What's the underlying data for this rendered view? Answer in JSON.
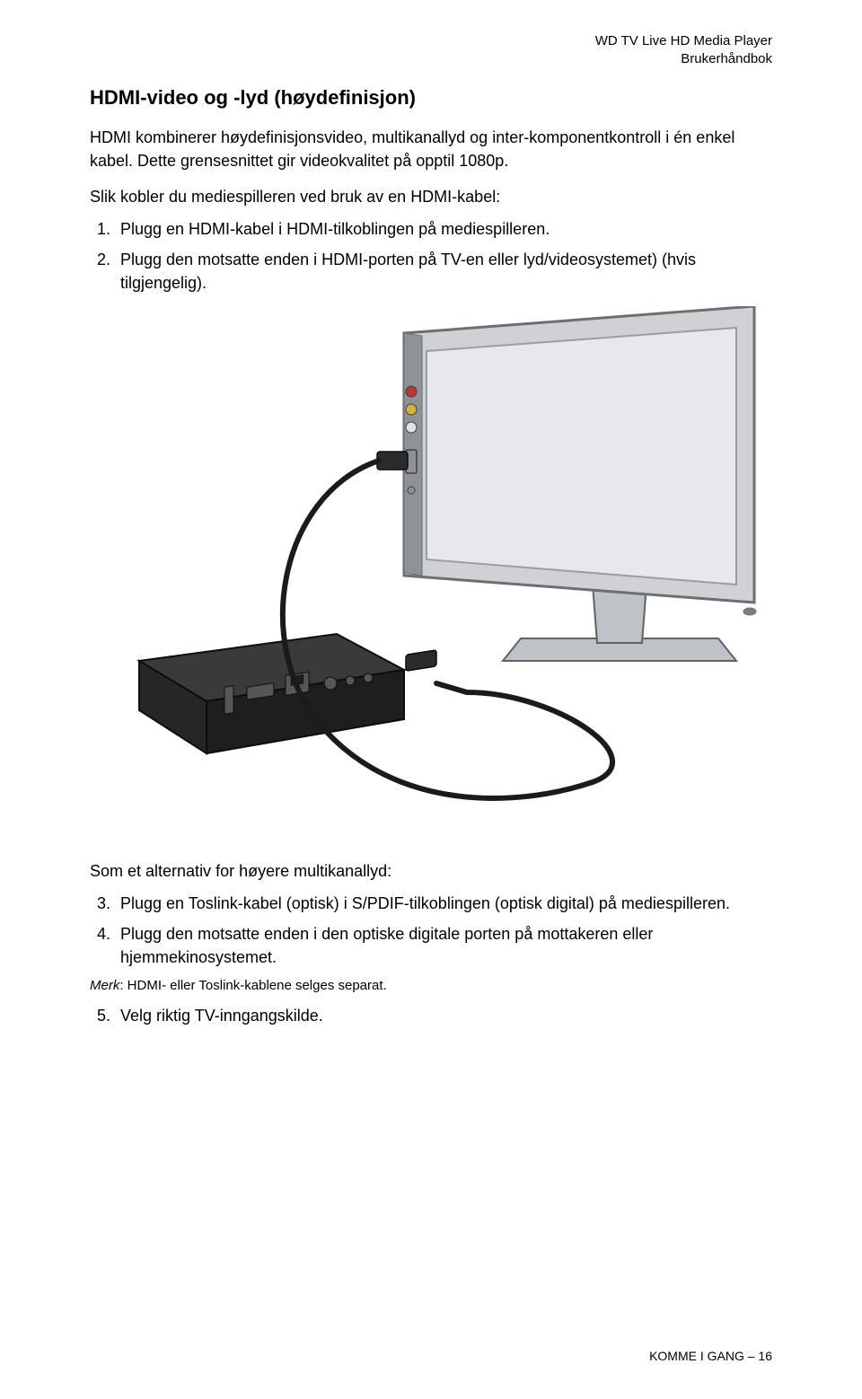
{
  "header": {
    "product": "WD TV Live HD Media Player",
    "doc_type": "Brukerhåndbok"
  },
  "section": {
    "heading": "HDMI-video og -lyd (høydefinisjon)",
    "intro": "HDMI kombinerer høydefinisjonsvideo, multikanallyd og inter-komponentkontroll i én enkel kabel. Dette grensesnittet gir videokvalitet på opptil 1080p.",
    "list1_intro": "Slik kobler du mediespilleren ved bruk av en HDMI-kabel:",
    "steps1": [
      "Plugg en HDMI-kabel i HDMI-tilkoblingen på mediespilleren.",
      "Plugg den motsatte enden i HDMI-porten på TV-en eller lyd/videosystemet) (hvis tilgjengelig)."
    ],
    "list2_intro": "Som et alternativ for høyere multikanallyd:",
    "steps2": [
      "Plugg en Toslink-kabel (optisk) i S/PDIF-tilkoblingen (optisk digital) på mediespilleren.",
      "Plugg den motsatte enden i den optiske digitale porten på mottakeren eller hjemmekinosystemet."
    ],
    "note_label": "Merk",
    "note_text": ": HDMI- eller Toslink-kablene selges separat.",
    "steps3": [
      "Velg riktig TV-inngangskilde."
    ]
  },
  "footer": {
    "chapter": "KOMME I GANG – 16"
  },
  "diagram": {
    "monitor": {
      "bezel_fill": "#cfd1d4",
      "bezel_stroke": "#6b6e72",
      "screen_fill": "#e6e8eb",
      "screen_stroke": "#9a9da1",
      "stand_fill": "#bfc2c6",
      "stand_stroke": "#5f6266",
      "button_fill": "#7a7d81",
      "port_panel_fill": "#8f9296",
      "port_red": "#b43c2e",
      "port_yellow": "#d9b03a",
      "port_white": "#e2e3e5",
      "port_stroke": "#3e4044"
    },
    "box": {
      "top_fill": "#3a3a3b",
      "front_fill": "#1e1e1f",
      "side_fill": "#262627",
      "stroke": "#0d0d0e",
      "port_fill": "#55565a",
      "port_stroke": "#0d0d0e"
    },
    "cable": {
      "stroke": "#1b1b1c",
      "width": 6,
      "connector_fill": "#2b2b2c",
      "connector_stroke": "#0c0c0d"
    },
    "background": "#ffffff"
  }
}
